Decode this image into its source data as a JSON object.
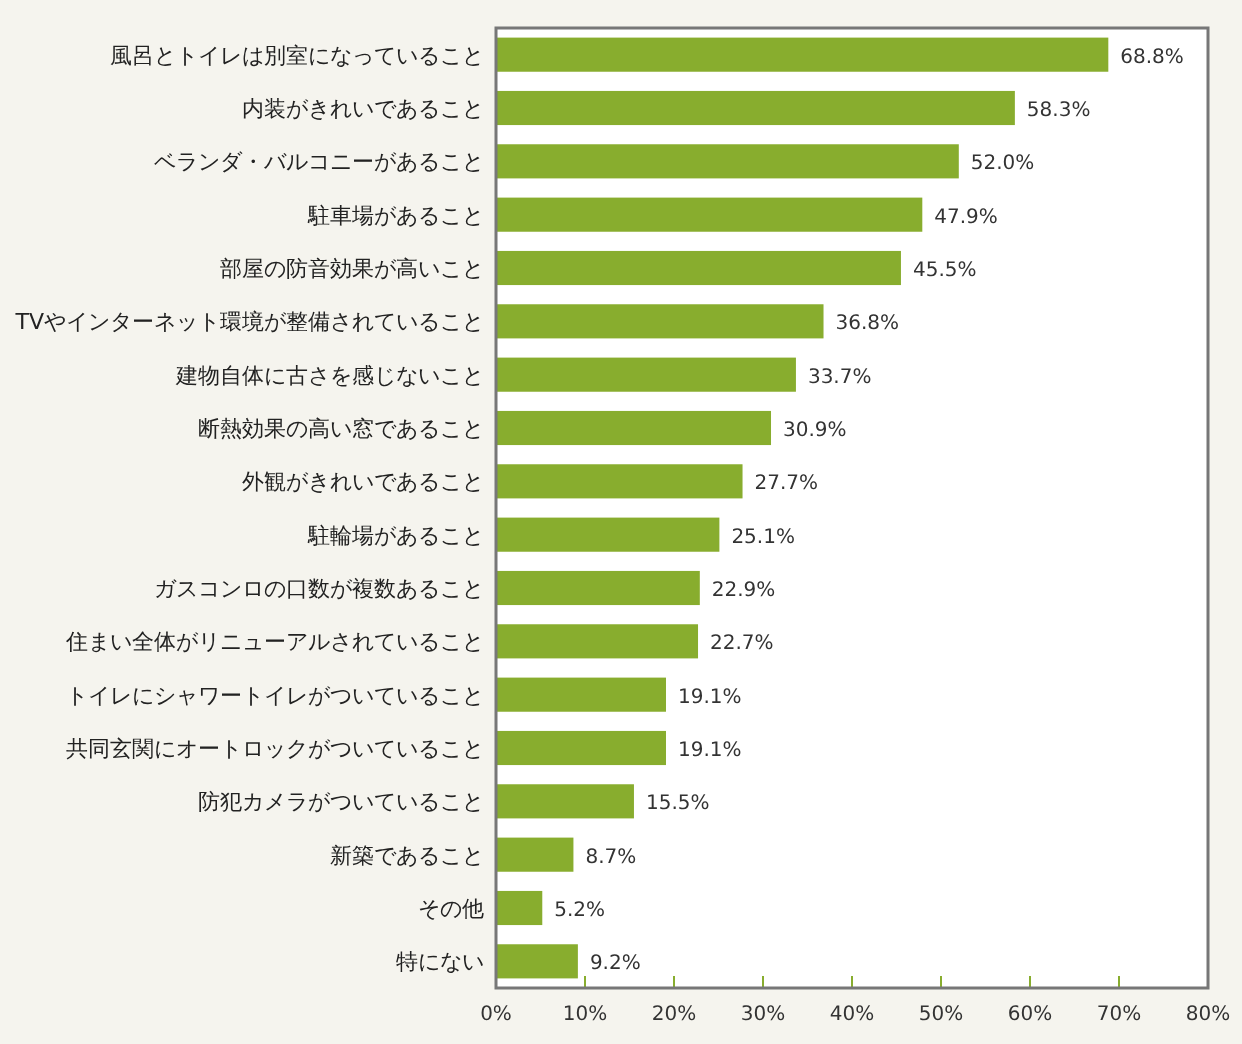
{
  "chart_data": {
    "type": "bar",
    "orientation": "horizontal",
    "categories": [
      "風呂とトイレは別室になっていること",
      "内装がきれいであること",
      "ベランダ・バルコニーがあること",
      "駐車場があること",
      "部屋の防音効果が高いこと",
      "TVやインターネット環境が整備されていること",
      "建物自体に古さを感じないこと",
      "断熱効果の高い窓であること",
      "外観がきれいであること",
      "駐輪場があること",
      "ガスコンロの口数が複数あること",
      "住まい全体がリニューアルされていること",
      "トイレにシャワートイレがついていること",
      "共同玄関にオートロックがついていること",
      "防犯カメラがついていること",
      "新築であること",
      "その他",
      "特にない"
    ],
    "values": [
      68.8,
      58.3,
      52.0,
      47.9,
      45.5,
      36.8,
      33.7,
      30.9,
      27.7,
      25.1,
      22.9,
      22.7,
      19.1,
      19.1,
      15.5,
      8.7,
      5.2,
      9.2
    ],
    "value_labels": [
      "68.8%",
      "58.3%",
      "52.0%",
      "47.9%",
      "45.5%",
      "36.8%",
      "33.7%",
      "30.9%",
      "27.7%",
      "25.1%",
      "22.9%",
      "22.7%",
      "19.1%",
      "19.1%",
      "15.5%",
      "8.7%",
      "5.2%",
      "9.2%"
    ],
    "color": "#88ad2e",
    "xlim": [
      0,
      80
    ],
    "xticks": [
      {
        "value": 0,
        "label": "0%"
      },
      {
        "value": 10,
        "label": "10%"
      },
      {
        "value": 20,
        "label": "20%"
      },
      {
        "value": 30,
        "label": "30%"
      },
      {
        "value": 40,
        "label": "40%"
      },
      {
        "value": 50,
        "label": "50%"
      },
      {
        "value": 60,
        "label": "60%"
      },
      {
        "value": 70,
        "label": "70%"
      },
      {
        "value": 80,
        "label": "80%"
      }
    ],
    "grid": false
  }
}
